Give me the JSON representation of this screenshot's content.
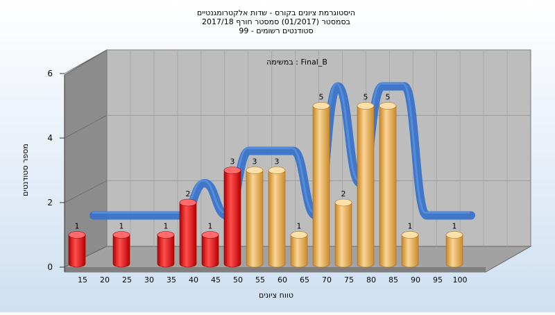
{
  "chart_data": {
    "type": "bar",
    "title_lines": [
      "היסטוגרמת ציונים בקורס - שדות אלקטרומגנטיים",
      "בסמסטר  (01/2017)  סמסטר חורף  2017/18",
      "סטודנטים רשומים - 99"
    ],
    "annotation": "במשימה : Final_B",
    "xlabel": "טווח ציונים",
    "ylabel": "מספר סטודנטים",
    "x_tick_labels": [
      "15",
      "20",
      "25",
      "30",
      "35",
      "40",
      "45",
      "50",
      "55",
      "60",
      "65",
      "70",
      "75",
      "80",
      "85",
      "90",
      "95",
      "100"
    ],
    "y_ticks": [
      0,
      2,
      4,
      6
    ],
    "ylim": [
      0,
      6
    ],
    "bars": [
      {
        "category": "15",
        "value": 1,
        "group": "fail"
      },
      {
        "category": "25",
        "value": 1,
        "group": "fail"
      },
      {
        "category": "35",
        "value": 1,
        "group": "fail"
      },
      {
        "category": "40",
        "value": 2,
        "group": "fail"
      },
      {
        "category": "45",
        "value": 1,
        "group": "fail"
      },
      {
        "category": "50",
        "value": 3,
        "group": "fail"
      },
      {
        "category": "55",
        "value": 3,
        "group": "pass"
      },
      {
        "category": "60",
        "value": 3,
        "group": "pass"
      },
      {
        "category": "65",
        "value": 1,
        "group": "pass"
      },
      {
        "category": "70",
        "value": 5,
        "group": "pass"
      },
      {
        "category": "75",
        "value": 2,
        "group": "pass"
      },
      {
        "category": "80",
        "value": 5,
        "group": "pass"
      },
      {
        "category": "85",
        "value": 5,
        "group": "pass"
      },
      {
        "category": "90",
        "value": 1,
        "group": "pass"
      },
      {
        "category": "100",
        "value": 1,
        "group": "pass"
      }
    ],
    "grid": true,
    "colors": {
      "fail": "#e01818",
      "pass": "#e8a848",
      "ribbon": "#3a73c8",
      "ribbon_flat": "#6b6b6b",
      "wall": "#b9b9b9",
      "floor": "#9a9a9a",
      "background": "#dbe8f5"
    }
  }
}
